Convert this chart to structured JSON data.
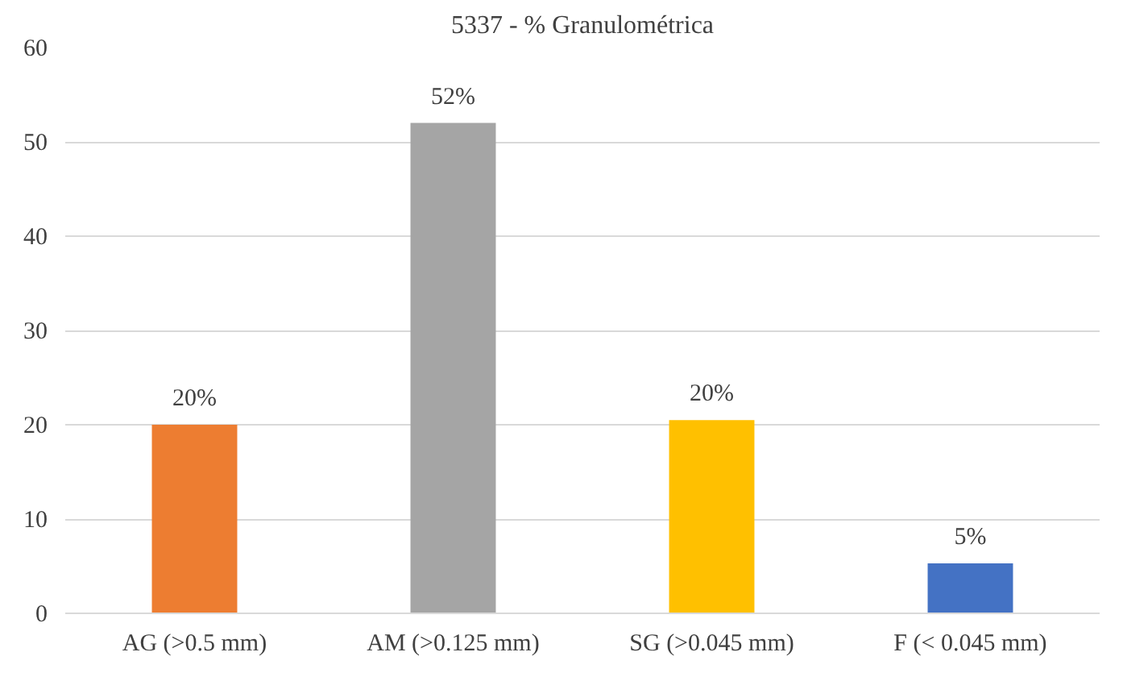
{
  "chart_data": {
    "type": "bar",
    "title": "5337 - % Granulométrica",
    "categories": [
      "AG (>0.5 mm)",
      "AM (>0.125 mm)",
      "SG (>0.045 mm)",
      "F (< 0.045 mm)"
    ],
    "values": [
      20,
      52,
      20.5,
      5.3
    ],
    "colors": [
      "#ed7d31",
      "#a5a5a5",
      "#ffc000",
      "#4472c4"
    ],
    "value_labels": [
      "20%",
      "52%",
      "20%",
      "5%"
    ],
    "ylim": [
      0,
      60
    ],
    "yticks": [
      0,
      10,
      20,
      30,
      40,
      50,
      60
    ],
    "grid": "y"
  }
}
